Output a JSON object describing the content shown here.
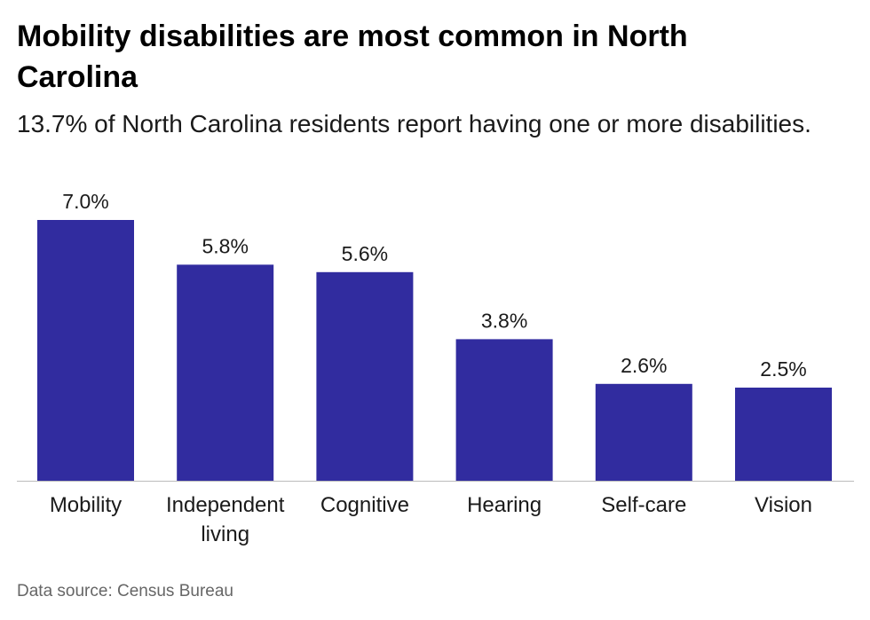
{
  "title": "Mobility disabilities are most common in North Carolina",
  "subtitle": "13.7% of North Carolina residents report having one or more disabilities.",
  "source": "Data source: Census Bureau",
  "colors": {
    "bar": "#312c9f",
    "axis": "#bbbbbb",
    "label": "#1a1a1a"
  },
  "chart_data": {
    "type": "bar",
    "categories": [
      "Mobility",
      "Independent living",
      "Cognitive",
      "Hearing",
      "Self-care",
      "Vision"
    ],
    "category_lines": [
      [
        "Mobility"
      ],
      [
        "Independent",
        "living"
      ],
      [
        "Cognitive"
      ],
      [
        "Hearing"
      ],
      [
        "Self-care"
      ],
      [
        "Vision"
      ]
    ],
    "values": [
      7.0,
      5.8,
      5.6,
      3.8,
      2.6,
      2.5
    ],
    "value_labels": [
      "7.0%",
      "5.8%",
      "5.6%",
      "3.8%",
      "2.6%",
      "2.5%"
    ],
    "unit": "%",
    "ylim": [
      0,
      7.0
    ],
    "grid": false,
    "legend": "none"
  }
}
